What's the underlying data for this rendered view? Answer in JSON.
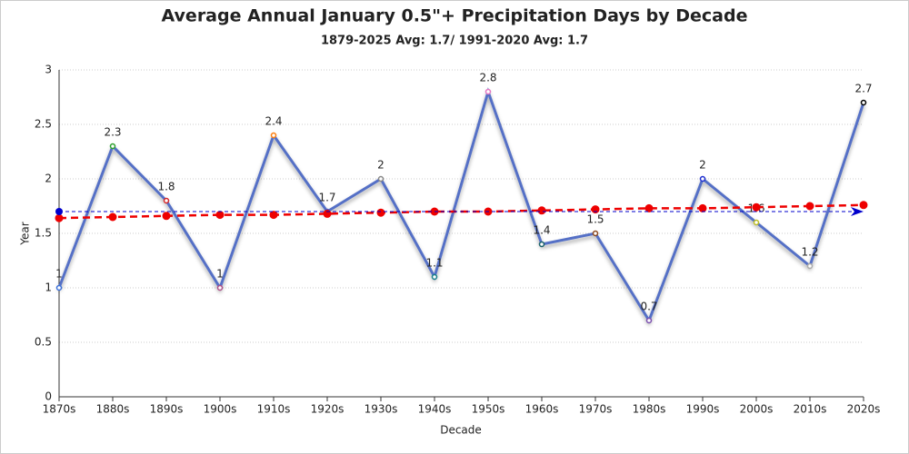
{
  "chart_data": {
    "type": "line",
    "title": "Average Annual January 0.5\"+ Precipitation Days by Decade",
    "subtitle": "1879-2025 Avg: 1.7/ 1991-2020 Avg: 1.7",
    "x_label": "Decade",
    "y_label": "Year",
    "categories": [
      "1870s",
      "1880s",
      "1890s",
      "1900s",
      "1910s",
      "1920s",
      "1930s",
      "1940s",
      "1950s",
      "1960s",
      "1970s",
      "1980s",
      "1990s",
      "2000s",
      "2010s",
      "2020s"
    ],
    "series": [
      {
        "color": "#5470c6",
        "values": [
          1,
          2.3,
          1.8,
          1,
          2.4,
          1.7,
          2,
          1.1,
          2.8,
          1.4,
          1.5,
          0.7,
          2,
          1.6,
          1.2,
          2.7
        ],
        "point_colors": [
          "#3a6fd8",
          "#2ca02c",
          "#d62728",
          "#b0508a",
          "#ff7f0e",
          "#3a6fd8",
          "#888888",
          "#17808a",
          "#e377c2",
          "#17606a",
          "#8c4a20",
          "#7b4fb0",
          "#1f2fd0",
          "#bcbd22",
          "#aaaaaa",
          "#000000"
        ],
        "data_labels": true
      },
      {
        "color": "#ee0000",
        "dashed": true,
        "values": [
          1.64,
          1.65,
          1.66,
          1.67,
          1.67,
          1.68,
          1.69,
          1.7,
          1.7,
          1.71,
          1.72,
          1.73,
          1.73,
          1.74,
          1.75,
          1.76
        ]
      }
    ],
    "reference_line": {
      "value": 1.7,
      "color": "#0000cc"
    },
    "ylim": [
      0,
      3
    ],
    "yticks": [
      0,
      0.5,
      1,
      1.5,
      2,
      2.5,
      3
    ],
    "grid": true
  }
}
